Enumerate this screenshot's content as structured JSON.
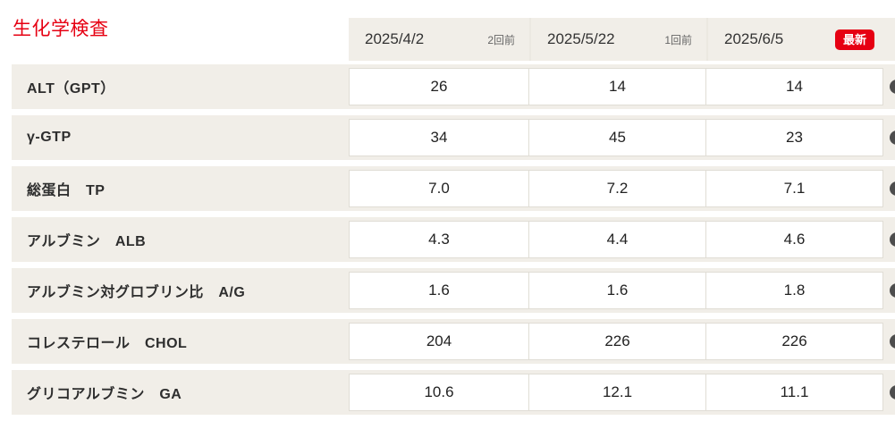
{
  "title": "生化学検査",
  "colors": {
    "accent_red": "#e60012",
    "row_beige": "#f1eee8",
    "cell_border": "#e0ddd5"
  },
  "icons": {
    "row_action": "dark-circle-button-partially-offscreen"
  },
  "columns": [
    {
      "date": "2025/4/2",
      "tag": "2回前"
    },
    {
      "date": "2025/5/22",
      "tag": "1回前"
    },
    {
      "date": "2025/6/5",
      "tag": "最新"
    }
  ],
  "rows": [
    {
      "label": "ALT（GPT）",
      "values": [
        "26",
        "14",
        "14"
      ]
    },
    {
      "label": "γ-GTP",
      "values": [
        "34",
        "45",
        "23"
      ]
    },
    {
      "label": "総蛋白　TP",
      "values": [
        "7.0",
        "7.2",
        "7.1"
      ]
    },
    {
      "label": "アルブミン　ALB",
      "values": [
        "4.3",
        "4.4",
        "4.6"
      ]
    },
    {
      "label": "アルブミン対グロブリン比　A/G",
      "values": [
        "1.6",
        "1.6",
        "1.8"
      ]
    },
    {
      "label": "コレステロール　CHOL",
      "values": [
        "204",
        "226",
        "226"
      ]
    },
    {
      "label": "グリコアルブミン　GA",
      "values": [
        "10.6",
        "12.1",
        "11.1"
      ]
    }
  ]
}
